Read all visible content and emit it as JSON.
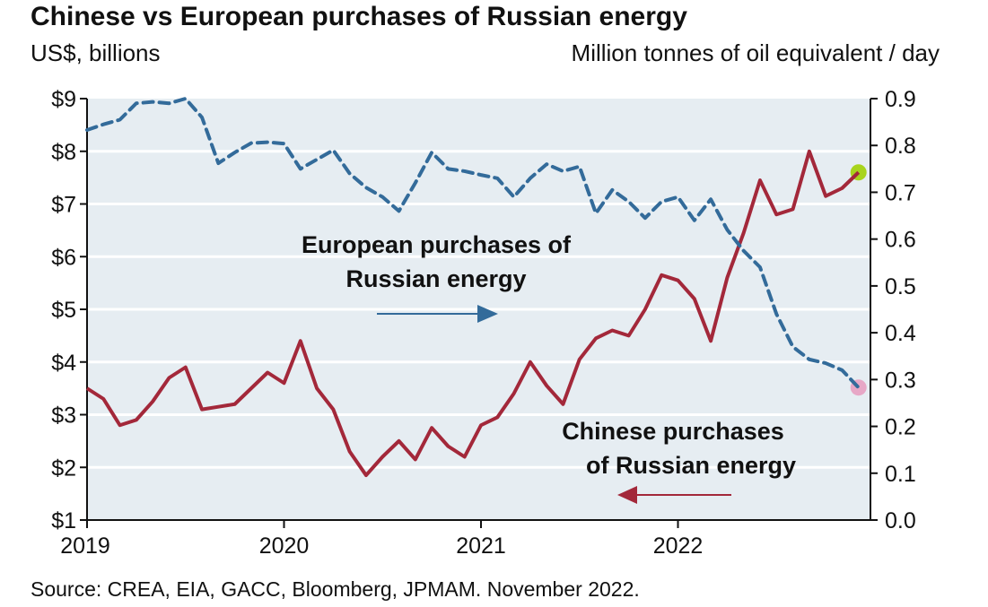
{
  "chart_data": {
    "type": "line",
    "title": "Chinese vs European purchases of Russian energy",
    "ylabel_left": "US$, billions",
    "ylabel_right": "Million tonnes of oil equivalent / day",
    "source": "Source: CREA, EIA, GACC, Bloomberg, JPMAM. November 2022.",
    "x_tick_labels": [
      "2019",
      "2020",
      "2021",
      "2022"
    ],
    "y_left_ticks": [
      "$1",
      "$2",
      "$3",
      "$4",
      "$5",
      "$6",
      "$7",
      "$8",
      "$9"
    ],
    "y_right_ticks": [
      "0.0",
      "0.1",
      "0.2",
      "0.3",
      "0.4",
      "0.5",
      "0.6",
      "0.7",
      "0.8",
      "0.9"
    ],
    "ylim_left": [
      1,
      9
    ],
    "ylim_right": [
      0,
      0.9
    ],
    "grid": true,
    "x": [
      "2019-01",
      "2019-02",
      "2019-03",
      "2019-04",
      "2019-05",
      "2019-06",
      "2019-07",
      "2019-08",
      "2019-09",
      "2019-10",
      "2019-11",
      "2019-12",
      "2020-01",
      "2020-02",
      "2020-03",
      "2020-04",
      "2020-05",
      "2020-06",
      "2020-07",
      "2020-08",
      "2020-09",
      "2020-10",
      "2020-11",
      "2020-12",
      "2021-01",
      "2021-02",
      "2021-03",
      "2021-04",
      "2021-05",
      "2021-06",
      "2021-07",
      "2021-08",
      "2021-09",
      "2021-10",
      "2021-11",
      "2021-12",
      "2022-01",
      "2022-02",
      "2022-03",
      "2022-04",
      "2022-05",
      "2022-06",
      "2022-07",
      "2022-08",
      "2022-09",
      "2022-10",
      "2022-11",
      "2022-12"
    ],
    "series": [
      {
        "name": "Chinese purchases of Russian energy",
        "axis": "left",
        "color": "#a3283a",
        "style": "solid",
        "end_marker_color": "#a8d41c",
        "values": [
          3.5,
          3.3,
          2.8,
          2.9,
          3.25,
          3.7,
          3.9,
          3.1,
          3.15,
          3.2,
          3.5,
          3.8,
          3.6,
          4.4,
          3.5,
          3.1,
          2.3,
          1.85,
          2.2,
          2.5,
          2.15,
          2.75,
          2.4,
          2.2,
          2.8,
          2.95,
          3.4,
          4.0,
          3.55,
          3.2,
          4.05,
          4.45,
          4.6,
          4.5,
          5.0,
          5.65,
          5.55,
          5.2,
          4.4,
          5.6,
          6.45,
          7.45,
          6.8,
          6.9,
          8.0,
          7.15,
          7.3,
          7.6
        ]
      },
      {
        "name": "European purchases of Russian energy",
        "axis": "right",
        "color": "#336b9a",
        "style": "dashed",
        "end_marker_color": "#e7a7c6",
        "values": [
          0.833,
          0.845,
          0.855,
          0.89,
          0.893,
          0.89,
          0.9,
          0.86,
          0.762,
          0.785,
          0.805,
          0.807,
          0.804,
          0.75,
          0.77,
          0.79,
          0.74,
          0.71,
          0.69,
          0.66,
          0.72,
          0.785,
          0.75,
          0.745,
          0.737,
          0.73,
          0.69,
          0.73,
          0.76,
          0.745,
          0.755,
          0.655,
          0.705,
          0.68,
          0.645,
          0.68,
          0.69,
          0.64,
          0.685,
          0.62,
          0.575,
          0.54,
          0.44,
          0.37,
          0.343,
          0.335,
          0.32,
          0.283
        ]
      }
    ],
    "annotations": {
      "european_line1": "European purchases of",
      "european_line2": "Russian energy",
      "chinese_line1": "Chinese purchases",
      "chinese_line2": "of Russian energy"
    },
    "background_color": "#e6edf2"
  }
}
